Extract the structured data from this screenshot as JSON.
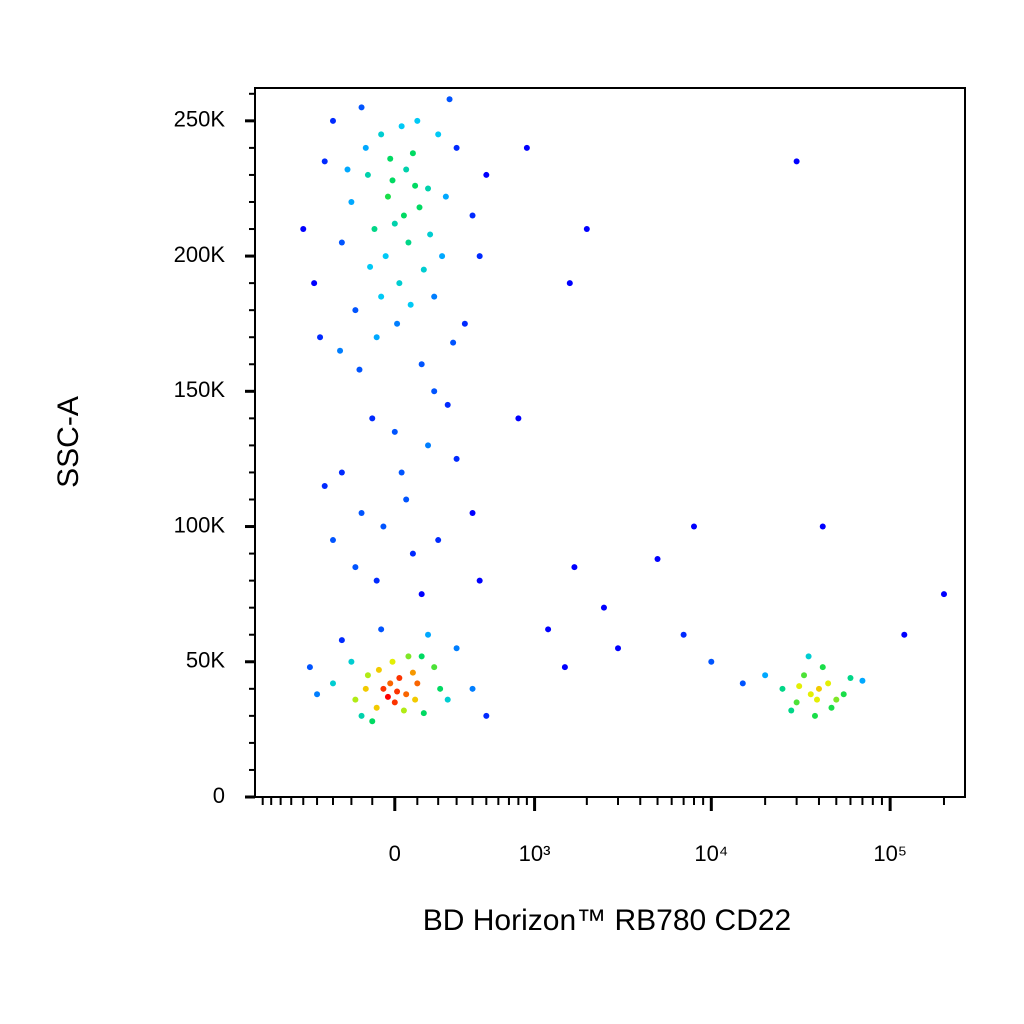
{
  "chart_data": {
    "type": "scatter",
    "x_label": "BD Horizon™ RB780 CD22",
    "y_label": "SSC-A",
    "xscale": "asinh",
    "xlim": [
      -1000,
      262144
    ],
    "ylim": [
      0,
      262144
    ],
    "xticks": [
      0,
      {
        "value": 1000,
        "label": "10³"
      },
      {
        "value": 10000,
        "label": "10⁴"
      },
      {
        "value": 100000,
        "label": "10⁵"
      }
    ],
    "xminorticks": [
      -900,
      -800,
      -700,
      -600,
      -500,
      -400,
      -300,
      -200,
      -100,
      100,
      200,
      300,
      400,
      500,
      600,
      700,
      800,
      900,
      2000,
      3000,
      4000,
      5000,
      6000,
      7000,
      8000,
      9000,
      20000,
      30000,
      40000,
      50000,
      60000,
      70000,
      80000,
      90000,
      200000
    ],
    "yticks": [
      0,
      {
        "value": 50000,
        "label": "50K"
      },
      {
        "value": 100000,
        "label": "100K"
      },
      {
        "value": 150000,
        "label": "150K"
      },
      {
        "value": 200000,
        "label": "200K"
      },
      {
        "value": 250000,
        "label": "250K"
      }
    ],
    "yminorticks": [
      10000,
      20000,
      30000,
      40000,
      60000,
      70000,
      80000,
      90000,
      110000,
      120000,
      130000,
      140000,
      160000,
      170000,
      180000,
      190000,
      210000,
      220000,
      230000,
      240000,
      260000
    ],
    "x": [
      -120,
      40,
      -60,
      150,
      -250,
      300,
      20,
      -180,
      100,
      -350,
      220,
      -30,
      80,
      -90,
      400,
      -420,
      10,
      180,
      -150,
      260,
      -10,
      60,
      -200,
      130,
      -80,
      350,
      -300,
      500,
      -500,
      50,
      -40,
      110,
      -130,
      200,
      0,
      -260,
      280,
      -60,
      90,
      -220,
      30,
      160,
      -110,
      -20,
      70,
      450,
      -380,
      120,
      -160,
      240,
      -100,
      150,
      -250,
      50,
      300,
      -50,
      200,
      -180,
      80,
      400,
      -350,
      0,
      120,
      -80,
      250,
      -300,
      450,
      30,
      -150,
      180,
      -50,
      50,
      -120,
      100,
      0,
      -200,
      180,
      -80,
      60,
      -150,
      250,
      -300,
      20,
      -30,
      130,
      -250,
      300,
      -100,
      80,
      -10,
      400,
      -400,
      150,
      -60,
      40,
      -180,
      210,
      -20,
      90,
      -130,
      10,
      -70,
      120,
      500,
      -450,
      36000,
      40000,
      30000,
      45000,
      33000,
      50000,
      28000,
      38000,
      42000,
      25000,
      55000,
      35000,
      47000,
      31000,
      39000,
      60000,
      20000,
      15000,
      10000,
      70000,
      1700,
      2500,
      1200,
      3000,
      5000,
      1500,
      800,
      1600,
      2000,
      900,
      8000,
      7000,
      30000,
      120000,
      200000,
      42000
    ],
    "values": [
      230000,
      215000,
      245000,
      225000,
      205000,
      240000,
      190000,
      180000,
      250000,
      235000,
      200000,
      222000,
      238000,
      210000,
      215000,
      190000,
      175000,
      185000,
      255000,
      258000,
      228000,
      205000,
      220000,
      195000,
      170000,
      175000,
      250000,
      230000,
      210000,
      232000,
      200000,
      218000,
      240000,
      245000,
      212000,
      165000,
      168000,
      185000,
      226000,
      232000,
      248000,
      208000,
      196000,
      236000,
      182000,
      200000,
      170000,
      160000,
      158000,
      222000,
      140000,
      130000,
      120000,
      110000,
      125000,
      100000,
      95000,
      85000,
      90000,
      105000,
      115000,
      135000,
      75000,
      80000,
      145000,
      95000,
      80000,
      120000,
      105000,
      150000,
      40000,
      38000,
      45000,
      42000,
      35000,
      50000,
      48000,
      33000,
      52000,
      30000,
      36000,
      42000,
      44000,
      37000,
      31000,
      58000,
      55000,
      28000,
      46000,
      50000,
      40000,
      38000,
      60000,
      62000,
      32000,
      36000,
      40000,
      42000,
      36000,
      40000,
      39000,
      47000,
      52000,
      30000,
      48000,
      38000,
      40000,
      35000,
      42000,
      45000,
      36000,
      32000,
      30000,
      48000,
      40000,
      38000,
      52000,
      33000,
      41000,
      36000,
      44000,
      45000,
      42000,
      50000,
      43000,
      85000,
      70000,
      62000,
      55000,
      88000,
      48000,
      140000,
      190000,
      210000,
      240000,
      100000,
      60000,
      235000,
      60000,
      75000,
      100000
    ]
  }
}
